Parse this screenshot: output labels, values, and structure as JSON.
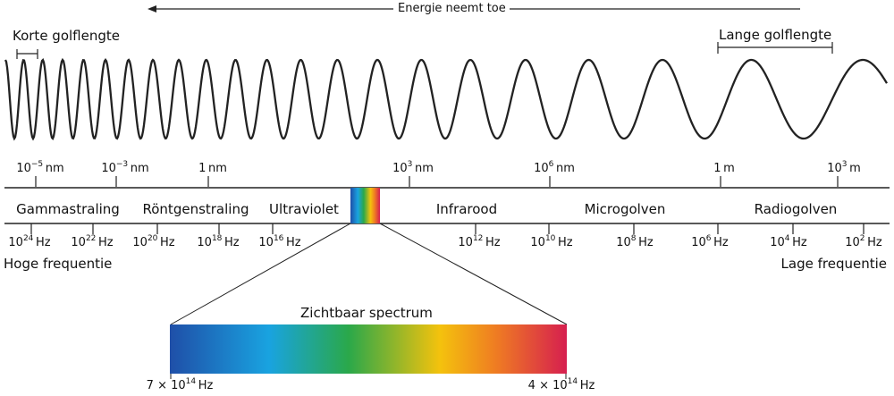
{
  "energy_label": "Energie neemt toe",
  "short_wave_label": "Korte golflengte",
  "long_wave_label": "Lange golflengte",
  "wavelength_ticks": [
    {
      "base": "10",
      "exp": "−5",
      "unit": "nm"
    },
    {
      "base": "10",
      "exp": "−3",
      "unit": "nm"
    },
    {
      "base": "1",
      "exp": "",
      "unit": "nm"
    },
    {
      "base": "10",
      "exp": "3",
      "unit": "nm"
    },
    {
      "base": "10",
      "exp": "6",
      "unit": "nm"
    },
    {
      "base": "1",
      "exp": "",
      "unit": "m"
    },
    {
      "base": "10",
      "exp": "3",
      "unit": "m"
    }
  ],
  "bands": [
    "Gammastraling",
    "Röntgenstraling",
    "Ultraviolet",
    "Infrarood",
    "Microgolven",
    "Radiogolven"
  ],
  "frequency_ticks": [
    {
      "base": "10",
      "exp": "24",
      "unit": "Hz"
    },
    {
      "base": "10",
      "exp": "22",
      "unit": "Hz"
    },
    {
      "base": "10",
      "exp": "20",
      "unit": "Hz"
    },
    {
      "base": "10",
      "exp": "18",
      "unit": "Hz"
    },
    {
      "base": "10",
      "exp": "16",
      "unit": "Hz"
    },
    {
      "base": "10",
      "exp": "12",
      "unit": "Hz"
    },
    {
      "base": "10",
      "exp": "10",
      "unit": "Hz"
    },
    {
      "base": "10",
      "exp": "8",
      "unit": "Hz"
    },
    {
      "base": "10",
      "exp": "6",
      "unit": "Hz"
    },
    {
      "base": "10",
      "exp": "4",
      "unit": "Hz"
    },
    {
      "base": "10",
      "exp": "2",
      "unit": "Hz"
    }
  ],
  "high_freq_label": "Hoge frequentie",
  "low_freq_label": "Lage frequentie",
  "visible_spectrum_label": "Zichtbaar spectrum",
  "visible_left": {
    "base": "7 × 10",
    "exp": "14",
    "unit": "Hz"
  },
  "visible_right": {
    "base": "4 × 10",
    "exp": "14",
    "unit": "Hz"
  },
  "colors": {
    "line": "#222222",
    "blue": "#1f4fa8",
    "cyan": "#19a3e0",
    "green": "#2aa84a",
    "yellow": "#f4c20d",
    "orange": "#ef7d22",
    "red": "#d61f4f"
  }
}
